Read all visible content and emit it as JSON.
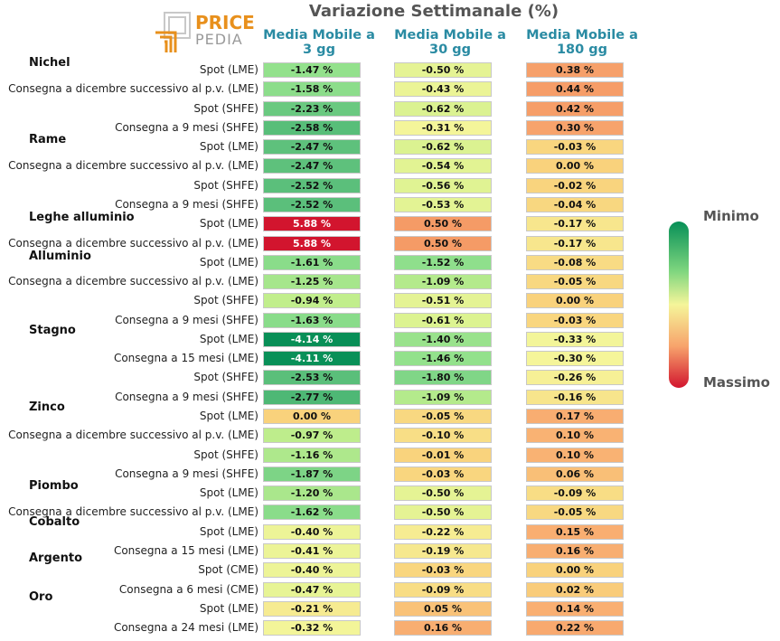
{
  "title": "Variazione Settimanale (%)",
  "logo": {
    "line1": "PRICE",
    "line2": "PEDIA"
  },
  "columns": [
    {
      "line1": "Media Mobile a",
      "line2": "3 gg"
    },
    {
      "line1": "Media Mobile a",
      "line2": "30 gg"
    },
    {
      "line1": "Media Mobile a",
      "line2": "180 gg"
    }
  ],
  "legend": {
    "min_label": "Minimo",
    "max_label": "Massimo"
  },
  "colors": {
    "min": "#078f57",
    "mid": "#f5f59a",
    "max": "#d2152e"
  },
  "chart_data": {
    "type": "heatmap",
    "title": "Variazione Settimanale (%)",
    "columns": [
      "Media Mobile a 3 gg",
      "Media Mobile a 30 gg",
      "Media Mobile a 180 gg"
    ],
    "groups": [
      {
        "name": "Nichel",
        "rows": [
          {
            "label": "Spot (LME)",
            "values": [
              -1.47,
              -0.5,
              0.38
            ]
          },
          {
            "label": "Consegna a dicembre successivo al p.v. (LME)",
            "values": [
              -1.58,
              -0.43,
              0.44
            ]
          },
          {
            "label": "Spot (SHFE)",
            "values": [
              -2.23,
              -0.62,
              0.42
            ]
          },
          {
            "label": "Consegna a 9 mesi (SHFE)",
            "values": [
              -2.58,
              -0.31,
              0.3
            ]
          }
        ]
      },
      {
        "name": "Rame",
        "rows": [
          {
            "label": "Spot (LME)",
            "values": [
              -2.47,
              -0.62,
              -0.03
            ]
          },
          {
            "label": "Consegna a dicembre successivo al p.v. (LME)",
            "values": [
              -2.47,
              -0.54,
              0.0
            ]
          },
          {
            "label": "Spot (SHFE)",
            "values": [
              -2.52,
              -0.56,
              -0.02
            ]
          },
          {
            "label": "Consegna a 9 mesi (SHFE)",
            "values": [
              -2.52,
              -0.53,
              -0.04
            ]
          }
        ]
      },
      {
        "name": "Leghe alluminio",
        "rows": [
          {
            "label": "Spot (LME)",
            "values": [
              5.88,
              0.5,
              -0.17
            ]
          },
          {
            "label": "Consegna a dicembre successivo al p.v. (LME)",
            "values": [
              5.88,
              0.5,
              -0.17
            ]
          }
        ]
      },
      {
        "name": "Alluminio",
        "rows": [
          {
            "label": "Spot (LME)",
            "values": [
              -1.61,
              -1.52,
              -0.08
            ]
          },
          {
            "label": "Consegna a dicembre successivo al p.v. (LME)",
            "values": [
              -1.25,
              -1.09,
              -0.05
            ]
          },
          {
            "label": "Spot (SHFE)",
            "values": [
              -0.94,
              -0.51,
              0.0
            ]
          },
          {
            "label": "Consegna a 9 mesi (SHFE)",
            "values": [
              -1.63,
              -0.61,
              -0.03
            ]
          }
        ]
      },
      {
        "name": "Stagno",
        "rows": [
          {
            "label": "Spot (LME)",
            "values": [
              -4.14,
              -1.4,
              -0.33
            ]
          },
          {
            "label": "Consegna a 15 mesi (LME)",
            "values": [
              -4.11,
              -1.46,
              -0.3
            ]
          },
          {
            "label": "Spot (SHFE)",
            "values": [
              -2.53,
              -1.8,
              -0.26
            ]
          },
          {
            "label": "Consegna a 9 mesi (SHFE)",
            "values": [
              -2.77,
              -1.09,
              -0.16
            ]
          }
        ]
      },
      {
        "name": "Zinco",
        "rows": [
          {
            "label": "Spot (LME)",
            "values": [
              0.0,
              -0.05,
              0.17
            ]
          },
          {
            "label": "Consegna a dicembre successivo al p.v. (LME)",
            "values": [
              -0.97,
              -0.1,
              0.1
            ]
          },
          {
            "label": "Spot (SHFE)",
            "values": [
              -1.16,
              -0.01,
              0.1
            ]
          },
          {
            "label": "Consegna a 9 mesi (SHFE)",
            "values": [
              -1.87,
              -0.03,
              0.06
            ]
          }
        ]
      },
      {
        "name": "Piombo",
        "rows": [
          {
            "label": "Spot (LME)",
            "values": [
              -1.2,
              -0.5,
              -0.09
            ]
          },
          {
            "label": "Consegna a dicembre successivo al p.v. (LME)",
            "values": [
              -1.62,
              -0.5,
              -0.05
            ]
          }
        ]
      },
      {
        "name": "Cobalto",
        "rows": [
          {
            "label": "Spot (LME)",
            "values": [
              -0.4,
              -0.22,
              0.15
            ]
          },
          {
            "label": "Consegna a 15 mesi (LME)",
            "values": [
              -0.41,
              -0.19,
              0.16
            ]
          }
        ]
      },
      {
        "name": "Argento",
        "rows": [
          {
            "label": "Spot (CME)",
            "values": [
              -0.4,
              -0.03,
              0.0
            ]
          },
          {
            "label": "Consegna a 6 mesi (CME)",
            "values": [
              -0.47,
              -0.09,
              0.02
            ]
          }
        ]
      },
      {
        "name": "Oro",
        "rows": [
          {
            "label": "Spot (LME)",
            "values": [
              -0.21,
              0.05,
              0.14
            ]
          },
          {
            "label": "Consegna a 24 mesi (LME)",
            "values": [
              -0.32,
              0.16,
              0.22
            ]
          }
        ]
      }
    ]
  }
}
